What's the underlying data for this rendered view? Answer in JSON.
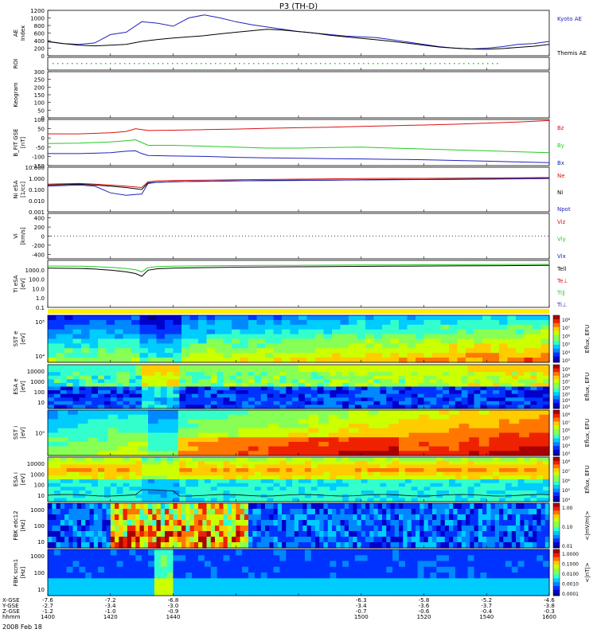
{
  "page": {
    "title": "P3 (TH-D)",
    "date_label": "2008 Feb 18"
  },
  "colors": {
    "blue": "#2222bb",
    "red": "#dd1111",
    "green": "#22cc22",
    "black": "#000000"
  },
  "chart_data": [
    {
      "type": "line",
      "panel": "ae",
      "ylabel": "AE Index",
      "ylim": [
        0,
        1200
      ],
      "ticks": [
        "1200",
        "1000",
        "800",
        "600",
        "400",
        "200",
        "0"
      ],
      "x": [
        1400,
        1405,
        1410,
        1415,
        1420,
        1425,
        1430,
        1435,
        1440,
        1445,
        1450,
        1455,
        1460,
        1465,
        1470,
        1475,
        1480,
        1485,
        1490,
        1495,
        1500,
        1505,
        1510,
        1515,
        1520,
        1525,
        1530,
        1535,
        1540,
        1545,
        1550,
        1555,
        1560
      ],
      "series": [
        {
          "name": "Kyoto AE",
          "color": "#2222bb",
          "values": [
            380,
            320,
            300,
            340,
            560,
            620,
            900,
            860,
            780,
            1000,
            1080,
            1000,
            900,
            820,
            760,
            700,
            640,
            600,
            560,
            520,
            500,
            480,
            420,
            360,
            300,
            240,
            200,
            180,
            200,
            240,
            300,
            320,
            380
          ]
        },
        {
          "name": "Themis AE",
          "color": "#000000",
          "values": [
            370,
            320,
            280,
            260,
            280,
            300,
            380,
            430,
            470,
            500,
            530,
            580,
            620,
            660,
            700,
            680,
            640,
            600,
            540,
            500,
            460,
            420,
            380,
            330,
            280,
            230,
            200,
            180,
            170,
            190,
            220,
            250,
            300
          ]
        }
      ]
    },
    {
      "type": "line",
      "panel": "roi",
      "ylabel": "ROI"
    },
    {
      "type": "heatmap",
      "panel": "keogram",
      "ylabel": "Keogram",
      "ylim": [
        0,
        300
      ],
      "ticks": [
        "300",
        "250",
        "200",
        "150",
        "100",
        "50",
        "0"
      ]
    },
    {
      "type": "line",
      "panel": "bfield",
      "ylabel": "B_FIT GSE [nT]",
      "ylim": [
        -150,
        100
      ],
      "ticks": [
        "100",
        "50",
        "0",
        "-50",
        "-100",
        "-150"
      ],
      "x": [
        1400,
        1410,
        1420,
        1425,
        1428,
        1430,
        1432,
        1440,
        1450,
        1460,
        1470,
        1480,
        1490,
        1500,
        1510,
        1520,
        1530,
        1540,
        1550,
        1560
      ],
      "series": [
        {
          "name": "Bz",
          "color": "#dd1111",
          "values": [
            22,
            22,
            28,
            35,
            50,
            45,
            40,
            42,
            45,
            48,
            52,
            55,
            58,
            62,
            66,
            70,
            74,
            80,
            86,
            94
          ]
        },
        {
          "name": "By",
          "color": "#22cc22",
          "values": [
            -30,
            -28,
            -22,
            -15,
            -10,
            -25,
            -40,
            -40,
            -45,
            -50,
            -55,
            -55,
            -52,
            -50,
            -55,
            -60,
            -65,
            -70,
            -75,
            -80
          ]
        },
        {
          "name": "Bx",
          "color": "#2222bb",
          "values": [
            -85,
            -85,
            -80,
            -72,
            -70,
            -85,
            -95,
            -98,
            -100,
            -105,
            -108,
            -110,
            -112,
            -114,
            -116,
            -118,
            -122,
            -126,
            -130,
            -134
          ]
        }
      ]
    },
    {
      "type": "line",
      "panel": "density",
      "ylabel": "Ni eSA [1/cc]",
      "scale": "log",
      "ylim": [
        0.001,
        10
      ],
      "ticks": [
        "10.000",
        "1.000",
        "0.100",
        "0.010",
        "0.001"
      ],
      "x": [
        1400,
        1410,
        1415,
        1420,
        1425,
        1430,
        1432,
        1435,
        1440,
        1450,
        1460,
        1470,
        1480,
        1490,
        1500,
        1510,
        1520,
        1530,
        1540,
        1550,
        1560
      ],
      "series": [
        {
          "name": "Ne",
          "color": "#dd1111",
          "values": [
            0.3,
            0.35,
            0.3,
            0.25,
            0.2,
            0.15,
            0.5,
            0.6,
            0.65,
            0.7,
            0.75,
            0.8,
            0.85,
            0.9,
            0.95,
            1.0,
            1.0,
            1.05,
            1.1,
            1.15,
            1.2
          ]
        },
        {
          "name": "Ni",
          "color": "#000000",
          "values": [
            0.25,
            0.3,
            0.25,
            0.2,
            0.15,
            0.1,
            0.4,
            0.45,
            0.5,
            0.55,
            0.6,
            0.65,
            0.7,
            0.7,
            0.75,
            0.8,
            0.8,
            0.85,
            0.9,
            0.95,
            1.0
          ]
        },
        {
          "name": "Npot",
          "color": "#2222bb",
          "values": [
            0.2,
            0.25,
            0.2,
            0.05,
            0.03,
            0.04,
            0.35,
            0.45,
            0.5,
            0.55,
            0.6,
            0.62,
            0.65,
            0.7,
            0.72,
            0.75,
            0.78,
            0.8,
            0.85,
            0.9,
            0.95
          ]
        }
      ]
    },
    {
      "type": "line",
      "panel": "velocity",
      "ylabel": "Vi [km/s]",
      "ylim": [
        -500,
        500
      ],
      "ticks": [
        "400",
        "200",
        "0",
        "-200",
        "-400"
      ],
      "series": [
        {
          "name": "Viz",
          "color": "#dd1111"
        },
        {
          "name": "Viy",
          "color": "#22cc22"
        },
        {
          "name": "Vix",
          "color": "#2222bb"
        }
      ]
    },
    {
      "type": "line",
      "panel": "temperature",
      "ylabel": "Ti eSA [eV]",
      "scale": "log",
      "ylim": [
        0.1,
        10000
      ],
      "ticks": [
        "1000.0",
        "100.0",
        "10.0",
        "1.0",
        "0.1"
      ],
      "x": [
        1400,
        1410,
        1415,
        1420,
        1425,
        1428,
        1430,
        1432,
        1435,
        1440,
        1450,
        1460,
        1470,
        1480,
        1490,
        1500,
        1510,
        1520,
        1530,
        1540,
        1550,
        1560
      ],
      "series": [
        {
          "name": "Tell",
          "color": "#000000",
          "values": [
            1500,
            1400,
            1200,
            900,
            600,
            400,
            200,
            900,
            1300,
            1500,
            1700,
            1900,
            2000,
            2100,
            2200,
            2300,
            2400,
            2500,
            2600,
            2700,
            2800,
            2900
          ]
        },
        {
          "name": "Te⊥",
          "color": "#dd1111"
        },
        {
          "name": "Ti∥",
          "color": "#22cc22",
          "values": [
            2500,
            2400,
            2200,
            1800,
            1400,
            1000,
            600,
            1700,
            2200,
            2400,
            2600,
            2800,
            2900,
            3000,
            3100,
            3200,
            3300,
            3400,
            3500,
            3600,
            3700,
            3800
          ]
        },
        {
          "name": "Ti⊥",
          "color": "#2222bb"
        }
      ]
    },
    {
      "type": "heatmap",
      "panel": "sst_e",
      "ylabel": "SST e [eV]",
      "ticks": [
        "10⁵",
        "10⁴"
      ],
      "colorbar_label": "Eflux, EFU",
      "colorbar_ticks": [
        "10⁸",
        "10⁷",
        "10⁶",
        "10⁵",
        "10⁴",
        "10³"
      ]
    },
    {
      "type": "heatmap",
      "panel": "esa_e",
      "ylabel": "ESA e [eV]",
      "ticks": [
        "10000",
        "1000",
        "100",
        "10"
      ],
      "colorbar_label": "Eflux, EFU",
      "colorbar_ticks": [
        "10⁹",
        "10⁸",
        "10⁷",
        "10⁶",
        "10⁵",
        "10⁴",
        "10³"
      ]
    },
    {
      "type": "heatmap",
      "panel": "sst_i",
      "ylabel": "SST i [eV]",
      "ticks": [
        "10⁵"
      ],
      "colorbar_label": "Eflux, EFU",
      "colorbar_ticks": [
        "10⁸",
        "10⁷",
        "10⁶",
        "10⁵",
        "10⁴",
        "10³"
      ]
    },
    {
      "type": "heatmap",
      "panel": "esa_i",
      "ylabel": "ESA i [eV]",
      "ticks": [
        "10000",
        "1000",
        "100",
        "10"
      ],
      "colorbar_label": "Eflux, EFU",
      "colorbar_ticks": [
        "10⁸",
        "10⁷",
        "10⁶",
        "10⁵",
        "10⁴"
      ]
    },
    {
      "type": "heatmap",
      "panel": "fbk_e",
      "ylabel": "FBK edc12 [Hz]",
      "ticks": [
        "1000",
        "100",
        "10"
      ],
      "colorbar_label": "<|mV/m|>",
      "colorbar_ticks": [
        "1.00",
        "0.10",
        "0.01"
      ]
    },
    {
      "type": "heatmap",
      "panel": "fbk_b",
      "ylabel": "FBK scm1 [Hz]",
      "ticks": [
        "1000",
        "100",
        "10"
      ],
      "colorbar_label": "<|nT|>",
      "colorbar_ticks": [
        "1.0000",
        "0.1000",
        "0.0100",
        "0.0010",
        "0.0001"
      ]
    },
    {
      "type": "table",
      "panel": "axis",
      "row_labels": [
        "X-GSE",
        "Y-GSE",
        "Z-GSE",
        "hhmm"
      ],
      "columns": [
        {
          "time": "1400",
          "x": "-7.6",
          "y": "-2.7",
          "z": "-1.2"
        },
        {
          "time": "1420",
          "x": "-7.2",
          "y": "-3.4",
          "z": "-1.0"
        },
        {
          "time": "1440",
          "x": "-6.8",
          "y": "-3.0",
          "z": "-0.9"
        },
        {
          "time": "1500",
          "x": "-6.3",
          "y": "-3.4",
          "z": "-0.7"
        },
        {
          "time": "1520",
          "x": "-5.8",
          "y": "-3.6",
          "z": "-0.6"
        },
        {
          "time": "1540",
          "x": "-5.2",
          "y": "-3.7",
          "z": "-0.4"
        },
        {
          "time": "1600",
          "x": "-4.6",
          "y": "-3.8",
          "z": "-0.3"
        }
      ]
    }
  ]
}
